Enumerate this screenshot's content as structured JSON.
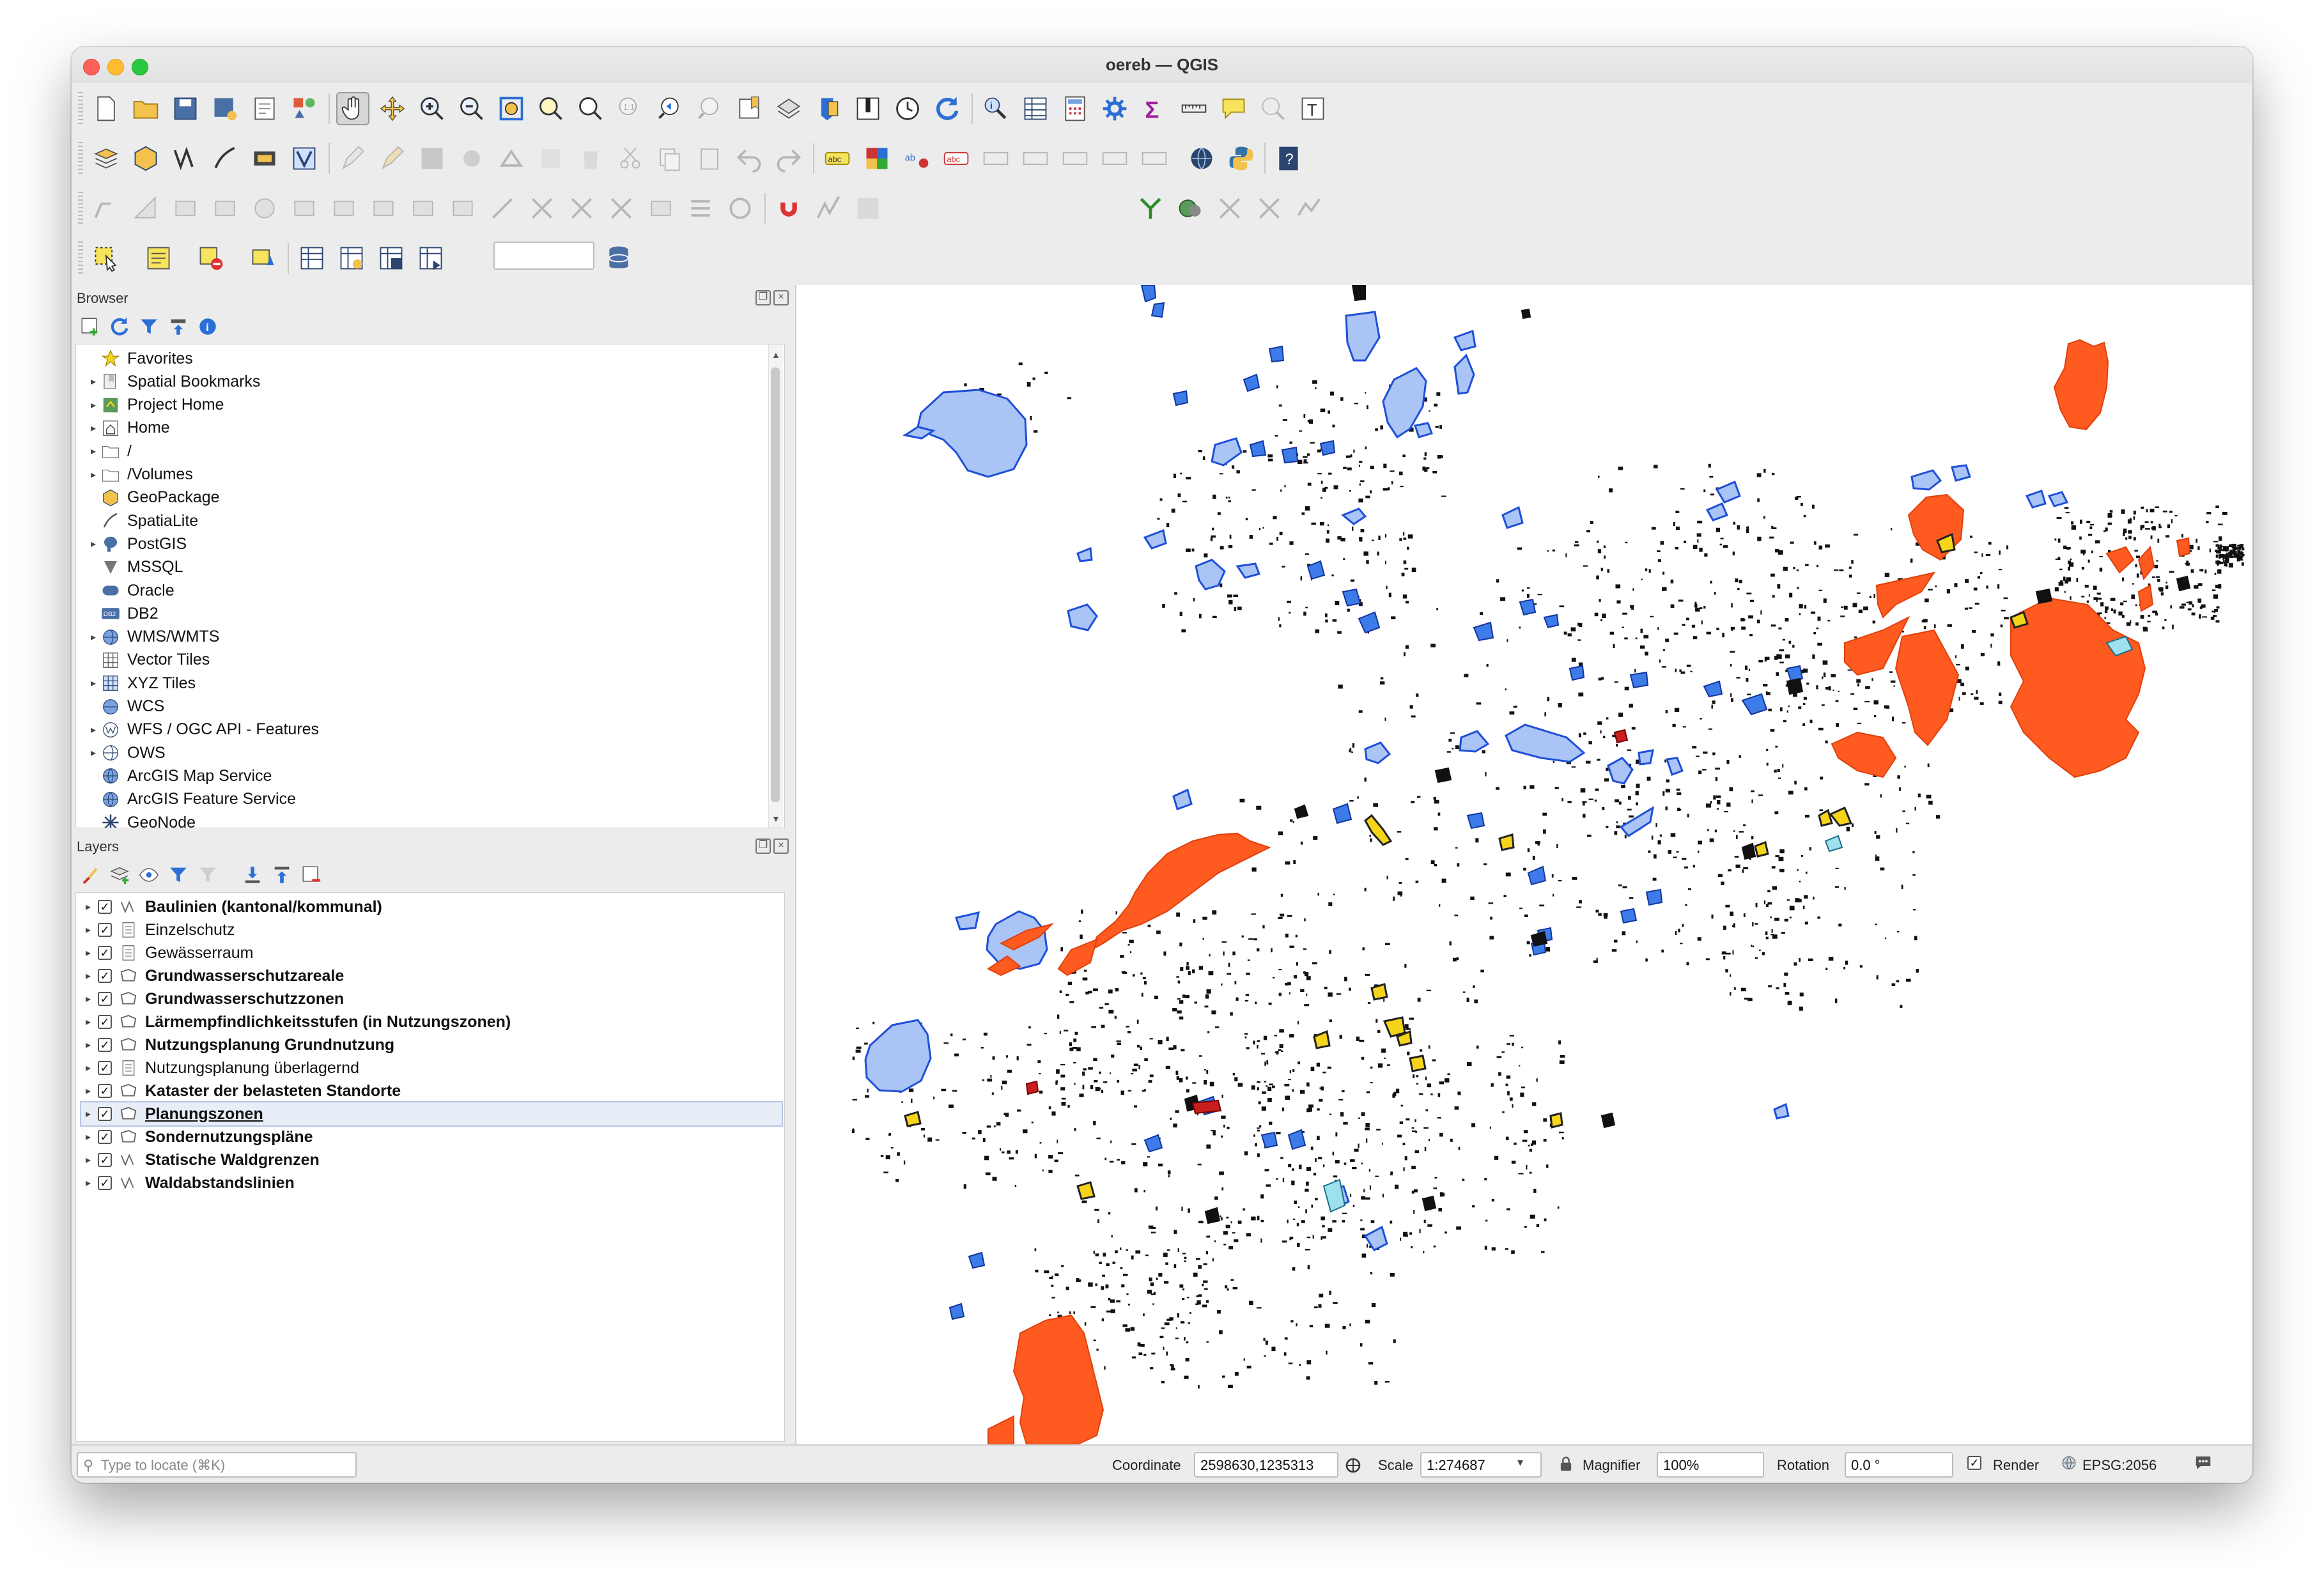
{
  "window": {
    "title": "oereb — QGIS"
  },
  "toolbar": {
    "size_value": "12",
    "unit_value": "px",
    "icons_row1": [
      "new-project-icon",
      "open-project-icon",
      "save-project-icon",
      "save-as-icon",
      "print-layout-icon",
      "style-manager-icon",
      "pan-icon",
      "pan-to-selection-icon",
      "zoom-in-icon",
      "zoom-out-icon",
      "zoom-full-icon",
      "zoom-to-selection-icon",
      "zoom-to-layer-icon",
      "zoom-native-icon",
      "zoom-last-icon",
      "zoom-next-icon",
      "new-bookmark-icon",
      "show-bookmarks-icon",
      "refresh-icon",
      "temporal-icon",
      "reload-icon",
      "identify-icon",
      "attribute-table-icon",
      "field-calculator-icon",
      "processing-toolbox-icon",
      "statistics-icon",
      "measure-icon",
      "map-tips-icon",
      "annotation-icon",
      "text-annotation-icon"
    ]
  },
  "browser": {
    "title": "Browser",
    "items": [
      {
        "label": "Favorites",
        "icon": "star-icon",
        "expand": false
      },
      {
        "label": "Spatial Bookmarks",
        "icon": "bookmark-icon",
        "expand": true
      },
      {
        "label": "Project Home",
        "icon": "project-home-icon",
        "expand": true
      },
      {
        "label": "Home",
        "icon": "home-icon",
        "expand": true
      },
      {
        "label": "/",
        "icon": "folder-icon",
        "expand": true
      },
      {
        "label": "/Volumes",
        "icon": "folder-icon",
        "expand": true
      },
      {
        "label": "GeoPackage",
        "icon": "geopackage-icon",
        "expand": false
      },
      {
        "label": "SpatiaLite",
        "icon": "spatialite-icon",
        "expand": false
      },
      {
        "label": "PostGIS",
        "icon": "postgis-icon",
        "expand": true
      },
      {
        "label": "MSSQL",
        "icon": "mssql-icon",
        "expand": false
      },
      {
        "label": "Oracle",
        "icon": "oracle-icon",
        "expand": false
      },
      {
        "label": "DB2",
        "icon": "db2-icon",
        "expand": false
      },
      {
        "label": "WMS/WMTS",
        "icon": "wms-icon",
        "expand": true
      },
      {
        "label": "Vector Tiles",
        "icon": "vector-tiles-icon",
        "expand": false
      },
      {
        "label": "XYZ Tiles",
        "icon": "xyz-tiles-icon",
        "expand": true
      },
      {
        "label": "WCS",
        "icon": "wcs-icon",
        "expand": false
      },
      {
        "label": "WFS / OGC API - Features",
        "icon": "wfs-icon",
        "expand": true
      },
      {
        "label": "OWS",
        "icon": "ows-icon",
        "expand": true
      },
      {
        "label": "ArcGIS Map Service",
        "icon": "arcgis-map-icon",
        "expand": false
      },
      {
        "label": "ArcGIS Feature Service",
        "icon": "arcgis-feature-icon",
        "expand": false
      },
      {
        "label": "GeoNode",
        "icon": "geonode-icon",
        "expand": false
      }
    ]
  },
  "layers": {
    "title": "Layers",
    "items": [
      {
        "label": "Baulinien (kantonal/kommunal)",
        "icon": "line-layer-icon",
        "bold": true
      },
      {
        "label": "Einzelschutz",
        "icon": "grouped-layer-icon",
        "bold": false
      },
      {
        "label": "Gewässerraum",
        "icon": "grouped-layer-icon",
        "bold": false
      },
      {
        "label": "Grundwasserschutzareale",
        "icon": "polygon-layer-icon",
        "bold": true
      },
      {
        "label": "Grundwasserschutzzonen",
        "icon": "polygon-layer-icon",
        "bold": true
      },
      {
        "label": "Lärmempfindlichkeitsstufen (in  Nutzungszonen)",
        "icon": "polygon-layer-icon",
        "bold": true
      },
      {
        "label": "Nutzungsplanung Grundnutzung",
        "icon": "polygon-layer-icon",
        "bold": true
      },
      {
        "label": "Nutzungsplanung überlagernd",
        "icon": "grouped-layer-icon",
        "bold": false
      },
      {
        "label": "Kataster der belasteten Standorte",
        "icon": "polygon-layer-icon",
        "bold": true
      },
      {
        "label": "Planungszonen",
        "icon": "polygon-layer-icon",
        "bold": true,
        "selected": true
      },
      {
        "label": "Sondernutzungspläne",
        "icon": "polygon-layer-icon",
        "bold": true
      },
      {
        "label": "Statische Waldgrenzen",
        "icon": "line-layer-icon",
        "bold": true
      },
      {
        "label": "Waldabstandslinien",
        "icon": "line-layer-icon",
        "bold": true
      }
    ]
  },
  "status": {
    "locator_placeholder": "Type to locate (⌘K)",
    "coordinate_label": "Coordinate",
    "coordinate_value": "2598630,1235313",
    "scale_label": "Scale",
    "scale_value": "1:274687",
    "magnifier_label": "Magnifier",
    "magnifier_value": "100%",
    "rotation_label": "Rotation",
    "rotation_value": "0.0 °",
    "render_label": "Render",
    "crs_label": "EPSG:2056"
  },
  "colors": {
    "water_fill": "#a9c4f5",
    "water_stroke": "#1f4fd8",
    "blue_feature": "#3d7be8",
    "orange_zone": "#ff5a1f",
    "black_feature": "#111111",
    "yellow_feature": "#f5d41a"
  }
}
